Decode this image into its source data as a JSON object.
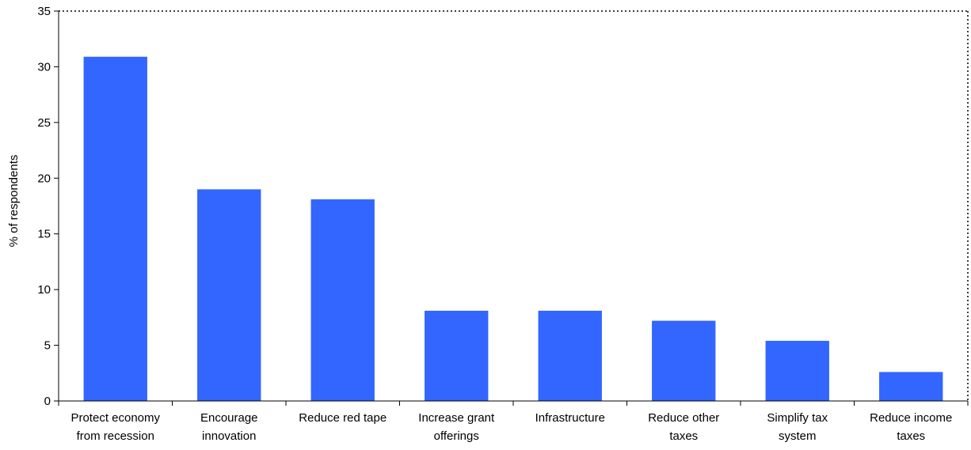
{
  "chart_data": {
    "type": "bar",
    "title": "",
    "xlabel": "",
    "ylabel": "% of respondents",
    "ylim": [
      0,
      35
    ],
    "yticks": [
      0,
      5,
      10,
      15,
      20,
      25,
      30,
      35
    ],
    "grid": false,
    "legend": "none",
    "bar_color": "#3366FF",
    "categories": [
      [
        "Protect economy",
        "from recession"
      ],
      [
        "Encourage",
        "innovation"
      ],
      [
        "Reduce red tape"
      ],
      [
        "Increase grant",
        "offerings"
      ],
      [
        "Infrastructure"
      ],
      [
        "Reduce other",
        "taxes"
      ],
      [
        "Simplify tax",
        "system"
      ],
      [
        "Reduce income",
        "taxes"
      ]
    ],
    "values": [
      30.9,
      19.0,
      18.1,
      8.1,
      8.1,
      7.2,
      5.4,
      2.6
    ]
  }
}
